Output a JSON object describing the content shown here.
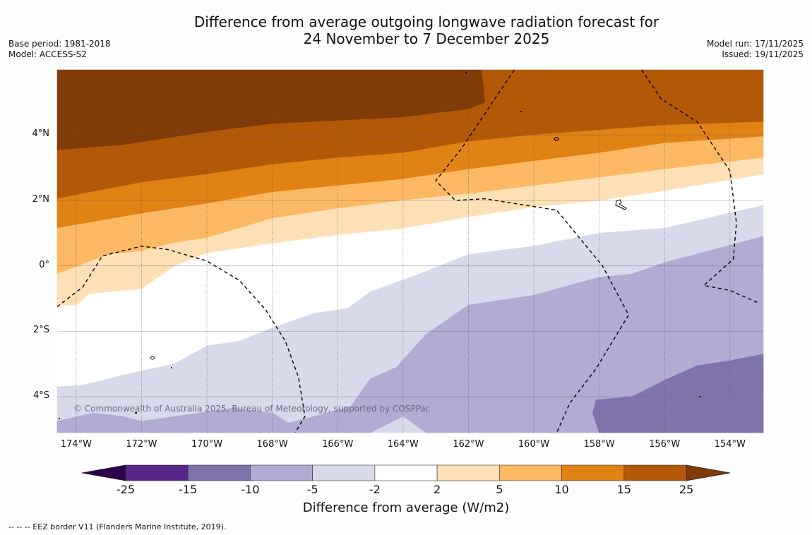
{
  "header": {
    "title_line1": "Difference from average outgoing longwave radiation forecast for",
    "title_line2": "24 November to 7 December 2025",
    "base_period": "Base period: 1981-2018",
    "model": "Model: ACCESS-S2",
    "model_run": "Model run: 17/11/2025",
    "issued": "Issued: 19/11/2025"
  },
  "map": {
    "lon_range": [
      -174.58,
      -152.98
    ],
    "lat_range": [
      -5.1,
      5.99
    ],
    "lat_ticks": [
      {
        "value": 4,
        "label": "4°N"
      },
      {
        "value": 2,
        "label": "2°N"
      },
      {
        "value": 0,
        "label": "0°"
      },
      {
        "value": -2,
        "label": "2°S"
      },
      {
        "value": -4,
        "label": "4°S"
      }
    ],
    "lon_ticks": [
      {
        "value": -174,
        "label": "174°W"
      },
      {
        "value": -172,
        "label": "172°W"
      },
      {
        "value": -170,
        "label": "170°W"
      },
      {
        "value": -168,
        "label": "168°W"
      },
      {
        "value": -166,
        "label": "166°W"
      },
      {
        "value": -164,
        "label": "164°W"
      },
      {
        "value": -162,
        "label": "162°W"
      },
      {
        "value": -160,
        "label": "160°W"
      },
      {
        "value": -158,
        "label": "158°W"
      },
      {
        "value": -156,
        "label": "156°W"
      },
      {
        "value": -154,
        "label": "154°W"
      }
    ],
    "copyright": "© Commonwealth of Australia 2025, Bureau of Meteorology, supported by COSPPac",
    "background_band": "-2 to 2",
    "contour_bands": [
      {
        "band": "15 to 25",
        "color": "#b35806",
        "upper": [
          [
            -174.58,
            3.55
          ],
          [
            -172.6,
            3.7
          ],
          [
            -170,
            4.1
          ],
          [
            -168,
            4.35
          ],
          [
            -166,
            4.45
          ],
          [
            -164,
            4.55
          ],
          [
            -162,
            4.8
          ],
          [
            -161.5,
            5.0
          ],
          [
            -161.6,
            5.99
          ],
          [
            -152.98,
            5.99
          ]
        ],
        "lower": [
          [
            -152.98,
            4.4
          ],
          [
            -156,
            4.3
          ],
          [
            -158,
            4.15
          ],
          [
            -160,
            4.0
          ],
          [
            -162,
            3.8
          ],
          [
            -164,
            3.45
          ],
          [
            -166,
            3.3
          ],
          [
            -168,
            3.1
          ],
          [
            -170,
            2.8
          ],
          [
            -172,
            2.55
          ],
          [
            -174.58,
            2.05
          ]
        ]
      },
      {
        "band": "25+",
        "color": "#7f3b08",
        "upper": [
          [
            -174.58,
            5.99
          ],
          [
            -161.6,
            5.99
          ]
        ],
        "lower": [
          [
            -161.6,
            5.99
          ],
          [
            -161.5,
            5.0
          ],
          [
            -162,
            4.8
          ],
          [
            -164,
            4.55
          ],
          [
            -166,
            4.45
          ],
          [
            -168,
            4.35
          ],
          [
            -170,
            4.1
          ],
          [
            -172.6,
            3.7
          ],
          [
            -174.58,
            3.55
          ]
        ]
      },
      {
        "band": "10 to 15",
        "color": "#e08214",
        "upper": [
          [
            -174.58,
            2.05
          ],
          [
            -172,
            2.55
          ],
          [
            -170,
            2.8
          ],
          [
            -168,
            3.1
          ],
          [
            -166,
            3.3
          ],
          [
            -164,
            3.45
          ],
          [
            -162,
            3.8
          ],
          [
            -160,
            4.0
          ],
          [
            -158,
            4.15
          ],
          [
            -156,
            4.3
          ],
          [
            -152.98,
            4.4
          ]
        ],
        "lower": [
          [
            -152.98,
            3.95
          ],
          [
            -156,
            3.75
          ],
          [
            -158,
            3.45
          ],
          [
            -160,
            3.2
          ],
          [
            -162,
            2.95
          ],
          [
            -164,
            2.65
          ],
          [
            -166,
            2.45
          ],
          [
            -168,
            2.25
          ],
          [
            -170,
            1.9
          ],
          [
            -172,
            1.6
          ],
          [
            -174.58,
            1.15
          ]
        ]
      },
      {
        "band": "5 to 10",
        "color": "#fdb863",
        "upper": [
          [
            -174.58,
            1.15
          ],
          [
            -172,
            1.6
          ],
          [
            -170,
            1.9
          ],
          [
            -168,
            2.25
          ],
          [
            -166,
            2.45
          ],
          [
            -164,
            2.65
          ],
          [
            -162,
            2.95
          ],
          [
            -160,
            3.2
          ],
          [
            -158,
            3.45
          ],
          [
            -156,
            3.75
          ],
          [
            -152.98,
            3.95
          ]
        ],
        "lower": [
          [
            -152.98,
            3.3
          ],
          [
            -156,
            2.95
          ],
          [
            -158,
            2.7
          ],
          [
            -160,
            2.45
          ],
          [
            -162,
            2.2
          ],
          [
            -164,
            2.0
          ],
          [
            -166,
            1.75
          ],
          [
            -168,
            1.45
          ],
          [
            -170,
            0.85
          ],
          [
            -171,
            0.7
          ],
          [
            -172,
            0.45
          ],
          [
            -173,
            0.35
          ],
          [
            -174.58,
            -0.25
          ]
        ]
      },
      {
        "band": "2 to 5",
        "color": "#fee0b6",
        "upper": [
          [
            -174.58,
            -0.25
          ],
          [
            -173,
            0.35
          ],
          [
            -172,
            0.45
          ],
          [
            -171,
            0.7
          ],
          [
            -170,
            0.85
          ],
          [
            -168,
            1.45
          ],
          [
            -166,
            1.75
          ],
          [
            -164,
            2.0
          ],
          [
            -162,
            2.2
          ],
          [
            -160,
            2.45
          ],
          [
            -158,
            2.7
          ],
          [
            -156,
            2.95
          ],
          [
            -152.98,
            3.3
          ]
        ],
        "lower": [
          [
            -152.98,
            2.8
          ],
          [
            -156,
            2.3
          ],
          [
            -158,
            2.0
          ],
          [
            -160,
            1.8
          ],
          [
            -162,
            1.5
          ],
          [
            -164,
            1.15
          ],
          [
            -166,
            0.95
          ],
          [
            -168,
            0.7
          ],
          [
            -170,
            0.4
          ],
          [
            -171,
            0.0
          ],
          [
            -172,
            -0.7
          ],
          [
            -173.6,
            -0.85
          ],
          [
            -174,
            -1.2
          ],
          [
            -174.58,
            -1.2
          ]
        ]
      },
      {
        "band": "-5 to -2",
        "color": "#d8daeb",
        "upper": [
          [
            -174.58,
            -3.7
          ],
          [
            -173.8,
            -3.65
          ],
          [
            -172.6,
            -3.35
          ],
          [
            -171,
            -3.0
          ],
          [
            -170,
            -2.45
          ],
          [
            -169,
            -2.3
          ],
          [
            -168,
            -1.9
          ],
          [
            -166.7,
            -1.45
          ],
          [
            -165.7,
            -1.3
          ],
          [
            -165,
            -0.8
          ],
          [
            -163.5,
            -0.25
          ],
          [
            -162,
            0.35
          ],
          [
            -160,
            0.6
          ],
          [
            -158,
            1.0
          ],
          [
            -156,
            1.15
          ],
          [
            -152.98,
            1.85
          ]
        ],
        "lower": [
          [
            -152.98,
            -5.1
          ],
          [
            -174.58,
            -5.1
          ]
        ]
      },
      {
        "band": "-10 to -5",
        "color": "#b2abd2",
        "upper": [
          [
            -174.58,
            -4.75
          ],
          [
            -173.5,
            -4.5
          ],
          [
            -172.6,
            -4.6
          ],
          [
            -172,
            -4.75
          ],
          [
            -170.6,
            -4.55
          ],
          [
            -169.2,
            -4.35
          ],
          [
            -168,
            -4.5
          ],
          [
            -167.5,
            -4.8
          ],
          [
            -166.7,
            -4.6
          ],
          [
            -165.6,
            -4.3
          ],
          [
            -165,
            -3.45
          ],
          [
            -164.2,
            -3.1
          ],
          [
            -163.3,
            -2.1
          ],
          [
            -162,
            -1.2
          ],
          [
            -160,
            -0.9
          ],
          [
            -158,
            -0.35
          ],
          [
            -157,
            -0.25
          ],
          [
            -156,
            0.1
          ],
          [
            -152.98,
            0.9
          ]
        ],
        "lower": [
          [
            -152.98,
            -5.1
          ],
          [
            -163.3,
            -5.1
          ],
          [
            -164,
            -4.6
          ],
          [
            -165,
            -5.1
          ],
          [
            -174.58,
            -5.1
          ]
        ]
      },
      {
        "band": "-15 to -10",
        "color": "#8073ac",
        "upper": [
          [
            -158,
            -5.1
          ],
          [
            -158.2,
            -4.5
          ],
          [
            -158.1,
            -4.1
          ],
          [
            -157,
            -4.0
          ],
          [
            -156,
            -3.5
          ],
          [
            -155,
            -3.05
          ],
          [
            -154,
            -2.9
          ],
          [
            -152.98,
            -2.7
          ]
        ],
        "lower": [
          [
            -152.98,
            -5.1
          ],
          [
            -158,
            -5.1
          ]
        ]
      }
    ],
    "eez_borders": [
      [
        [
          -174.58,
          -1.25
        ],
        [
          -173.8,
          -0.65
        ],
        [
          -173.2,
          0.3
        ],
        [
          -172,
          0.6
        ],
        [
          -171.2,
          0.5
        ],
        [
          -170,
          0.15
        ],
        [
          -169,
          -0.45
        ],
        [
          -168.2,
          -1.35
        ],
        [
          -167.6,
          -2.3
        ],
        [
          -167.2,
          -3.4
        ],
        [
          -167.0,
          -4.6
        ],
        [
          -167.3,
          -5.1
        ]
      ],
      [
        [
          -160.6,
          5.99
        ],
        [
          -162.2,
          3.6
        ],
        [
          -163.0,
          2.6
        ],
        [
          -162.4,
          2.0
        ],
        [
          -161.5,
          2.05
        ],
        [
          -159.3,
          1.7
        ],
        [
          -157.9,
          0.0
        ],
        [
          -157.1,
          -1.5
        ],
        [
          -158.1,
          -3.15
        ],
        [
          -158.9,
          -4.2
        ],
        [
          -159.3,
          -5.1
        ]
      ],
      [
        [
          -156.7,
          5.99
        ],
        [
          -156.1,
          5.1
        ],
        [
          -155.0,
          4.4
        ],
        [
          -154.0,
          2.9
        ],
        [
          -153.8,
          1.3
        ],
        [
          -153.9,
          0.2
        ],
        [
          -154.8,
          -0.6
        ],
        [
          -154.0,
          -0.75
        ],
        [
          -153.1,
          -1.15
        ]
      ]
    ]
  },
  "colorbar": {
    "title": "Difference from average (W/m2)",
    "ticks": [
      "-25",
      "-15",
      "-10",
      "-5",
      "-2",
      "2",
      "5",
      "10",
      "15",
      "25"
    ],
    "segments": [
      {
        "range": "-15 to -25",
        "color": "#542788"
      },
      {
        "range": "-10 to -15",
        "color": "#8073ac"
      },
      {
        "range": "-5 to -10",
        "color": "#b2abd2"
      },
      {
        "range": "-2 to -5",
        "color": "#d8daeb"
      },
      {
        "range": "-2 to 2",
        "color": "#ffffff"
      },
      {
        "range": "2 to 5",
        "color": "#fee0b6"
      },
      {
        "range": "5 to 10",
        "color": "#fdb863"
      },
      {
        "range": "10 to 15",
        "color": "#e08214"
      },
      {
        "range": "15 to 25",
        "color": "#b35806"
      }
    ],
    "extend_min_color": "#2d004b",
    "extend_max_color": "#7f3b08"
  },
  "footer": {
    "eez_note": "--  --  -- EEZ border V11 (Flanders Marine Institute, 2019)."
  }
}
